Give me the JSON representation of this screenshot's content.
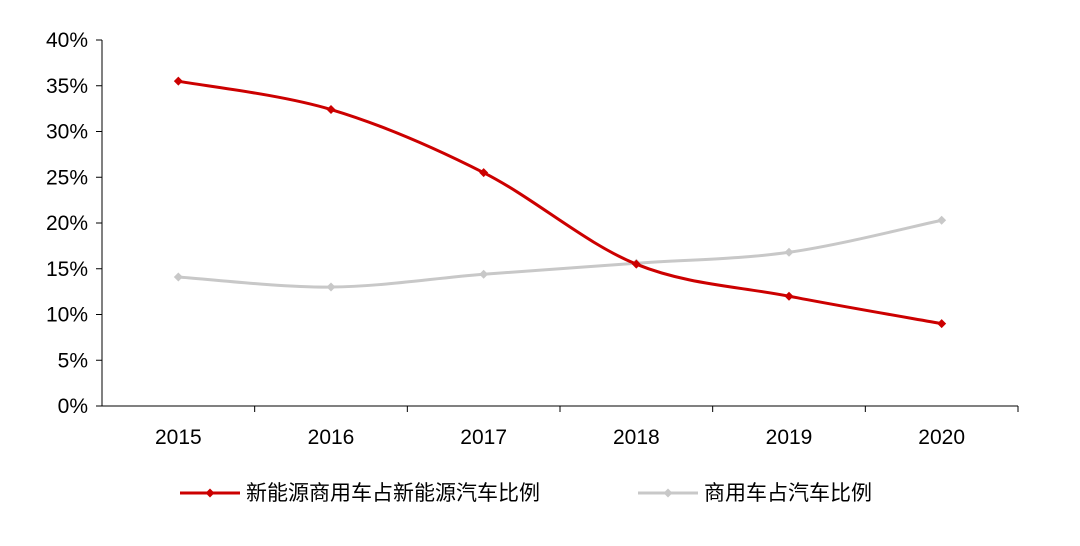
{
  "chart_data": {
    "type": "line",
    "title": "",
    "xlabel": "",
    "ylabel": "",
    "categories": [
      "2015",
      "2016",
      "2017",
      "2018",
      "2019",
      "2020"
    ],
    "y_ticks": [
      "0%",
      "5%",
      "10%",
      "15%",
      "20%",
      "25%",
      "30%",
      "35%",
      "40%"
    ],
    "ylim": [
      0,
      40
    ],
    "y_unit": "%",
    "grid": false,
    "legend_position": "bottom",
    "series": [
      {
        "name": "新能源商用车占新能源汽车比例",
        "values": [
          35.5,
          32.4,
          25.5,
          15.5,
          12.0,
          9.0
        ],
        "color": "#cc0000",
        "marker": "diamond"
      },
      {
        "name": "商用车占汽车比例",
        "values": [
          14.1,
          13.0,
          14.4,
          15.6,
          16.8,
          20.3
        ],
        "color": "#c8c8c8",
        "marker": "diamond"
      }
    ]
  }
}
